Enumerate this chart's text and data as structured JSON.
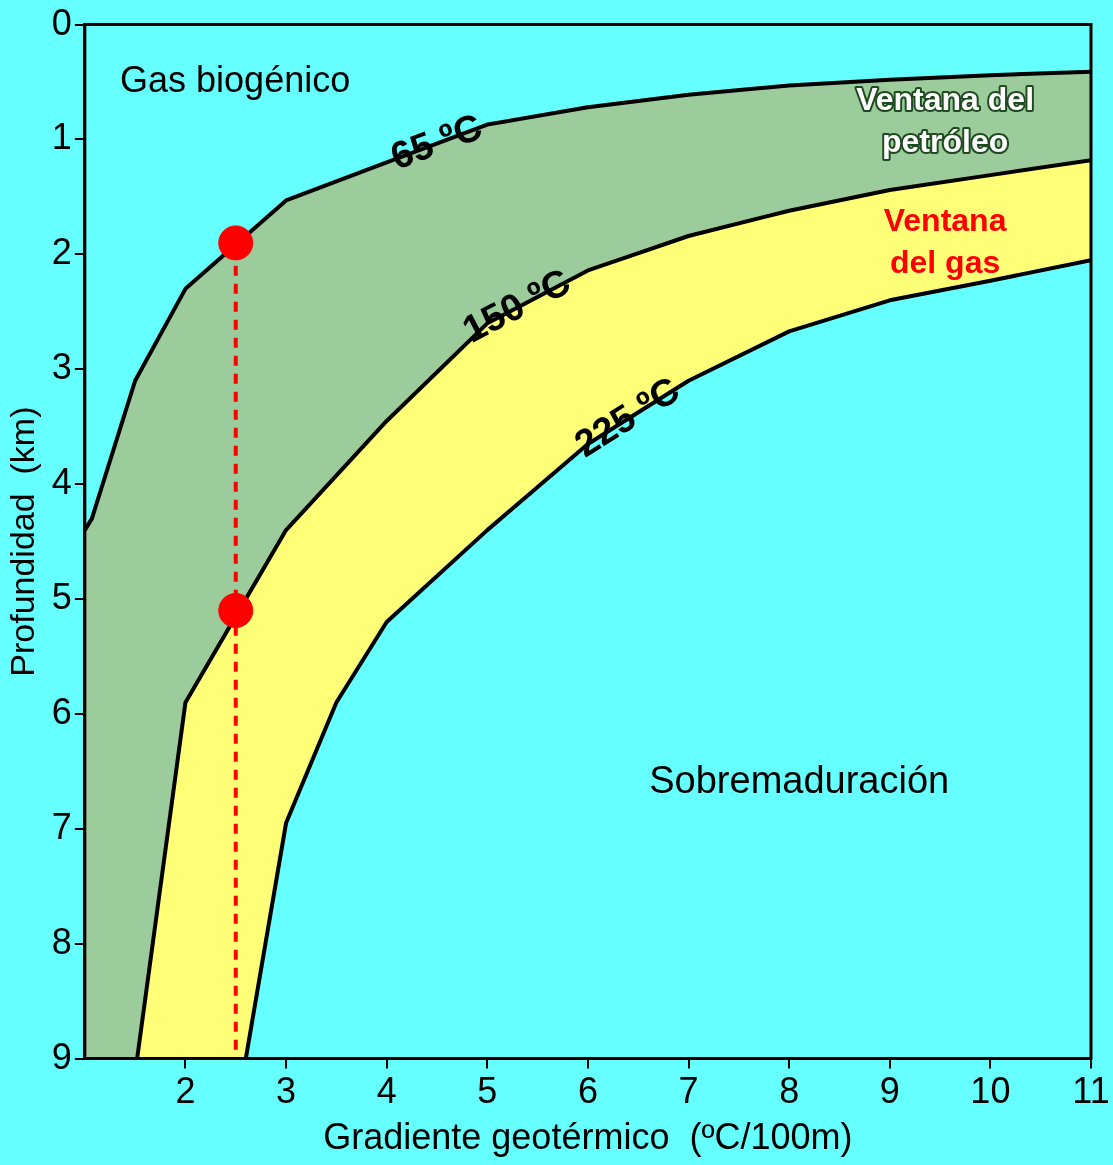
{
  "chart_data": {
    "type": "area",
    "xlabel": "Gradiente geotérmico  (ºC/100m)",
    "ylabel": "Profundidad  (km)",
    "xlim": [
      1,
      11
    ],
    "ylim": [
      9,
      0
    ],
    "xticks": [
      2,
      3,
      4,
      5,
      6,
      7,
      8,
      9,
      10,
      11
    ],
    "yticks": [
      0,
      1,
      2,
      3,
      4,
      5,
      6,
      7,
      8,
      9
    ],
    "grid": false,
    "legend": false,
    "annotations": [
      "Gas biogénico",
      "Ventana del petróleo",
      "Ventana del gas",
      "Sobremaduración"
    ],
    "series": [
      {
        "name": "65 ºC",
        "color": "#9ccc9c",
        "x": [
          1,
          1.07,
          1.5,
          2,
          3,
          4,
          5,
          6,
          7,
          8,
          9,
          10,
          11
        ],
        "values": [
          4.4,
          4.3,
          3.1,
          2.3,
          1.53,
          1.2,
          0.87,
          0.72,
          0.61,
          0.53,
          0.48,
          0.44,
          0.41
        ]
      },
      {
        "name": "150 ºC",
        "color": "#ffff77",
        "x": [
          1.52,
          2,
          3,
          4,
          5,
          6,
          7,
          8,
          9,
          10,
          11
        ],
        "values": [
          9,
          5.9,
          4.4,
          3.45,
          2.6,
          2.14,
          1.84,
          1.62,
          1.44,
          1.31,
          1.18
        ]
      },
      {
        "name": "225 ºC",
        "color": "#66ffff",
        "x": [
          2.6,
          3,
          3.5,
          4,
          5,
          6,
          7,
          8,
          9,
          10,
          11
        ],
        "values": [
          9,
          6.95,
          5.9,
          5.2,
          4.4,
          3.65,
          3.1,
          2.67,
          2.4,
          2.23,
          2.05
        ]
      },
      {
        "type": "line",
        "color": "#ff0000",
        "line_style": "dashed",
        "marker": "none",
        "x": [
          2.5,
          2.5
        ],
        "values": [
          2.1,
          9
        ]
      },
      {
        "type": "scatter",
        "color": "#ff0000",
        "marker": "circle",
        "x": [
          2.5,
          2.5
        ],
        "values": [
          1.9,
          5.1
        ]
      }
    ]
  }
}
